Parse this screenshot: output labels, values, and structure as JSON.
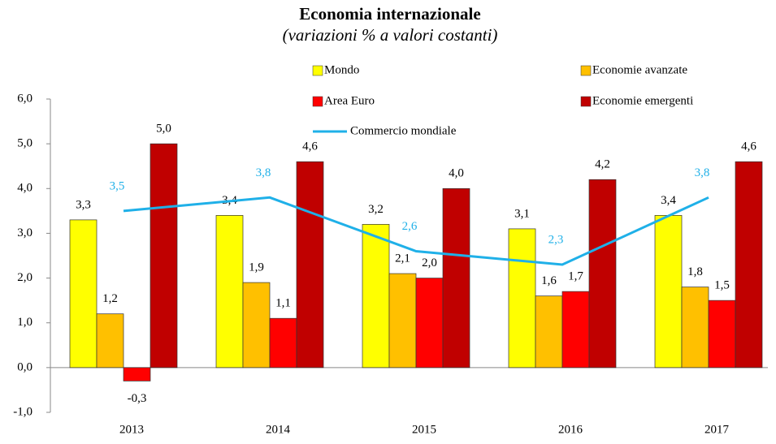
{
  "chart_data": {
    "type": "bar",
    "title": "Economia internazionale",
    "subtitle": "(variazioni % a valori costanti)",
    "categories": [
      "2013",
      "2014",
      "2015",
      "2016",
      "2017"
    ],
    "series": [
      {
        "name": "Mondo",
        "color": "#ffff00",
        "values": [
          3.3,
          3.4,
          3.2,
          3.1,
          3.4
        ],
        "value_labels": [
          "3,3",
          "3,4",
          "3,2",
          "3,1",
          "3,4"
        ]
      },
      {
        "name": "Economie avanzate",
        "color": "#ffc000",
        "values": [
          1.2,
          1.9,
          2.1,
          1.6,
          1.8
        ],
        "value_labels": [
          "1,2",
          "1,9",
          "2,1",
          "1,6",
          "1,8"
        ]
      },
      {
        "name": "Area Euro",
        "color": "#ff0000",
        "values": [
          -0.3,
          1.1,
          2.0,
          1.7,
          1.5
        ],
        "value_labels": [
          "-0,3",
          "1,1",
          "2,0",
          "1,7",
          "1,5"
        ]
      },
      {
        "name": "Economie emergenti",
        "color": "#c00000",
        "values": [
          5.0,
          4.6,
          4.0,
          4.2,
          4.6
        ],
        "value_labels": [
          "5,0",
          "4,6",
          "4,0",
          "4,2",
          "4,6"
        ]
      },
      {
        "name": "Commercio mondiale",
        "color": "#1fb0e8",
        "type": "line",
        "values": [
          3.5,
          3.8,
          2.6,
          2.3,
          3.8
        ],
        "value_labels": [
          "3,5",
          "3,8",
          "2,6",
          "2,3",
          "3,8"
        ]
      }
    ],
    "ylim": [
      -1,
      6
    ],
    "yticks": [
      {
        "value": -1,
        "label": "-1,0"
      },
      {
        "value": 0,
        "label": "0,0"
      },
      {
        "value": 1,
        "label": "1,0"
      },
      {
        "value": 2,
        "label": "2,0"
      },
      {
        "value": 3,
        "label": "3,0"
      },
      {
        "value": 4,
        "label": "4,0"
      },
      {
        "value": 5,
        "label": "5,0"
      },
      {
        "value": 6,
        "label": "6,0"
      }
    ]
  }
}
